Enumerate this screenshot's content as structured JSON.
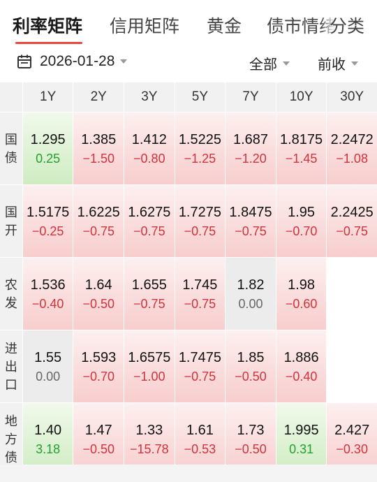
{
  "tabs": [
    {
      "label": "利率矩阵",
      "active": true
    },
    {
      "label": "信用矩阵",
      "active": false
    },
    {
      "label": "黄金",
      "active": false
    },
    {
      "label": "债市情绪",
      "active": false
    }
  ],
  "tab_more_label": "分类",
  "filters": {
    "date": "2026-01-28",
    "scope": "全部",
    "compare": "前收"
  },
  "columns": [
    "1Y",
    "2Y",
    "3Y",
    "5Y",
    "7Y",
    "10Y",
    "30Y"
  ],
  "rows": [
    {
      "label": [
        "国",
        "债"
      ],
      "cells": [
        {
          "value": "1.295",
          "change": "0.25",
          "tone": "green"
        },
        {
          "value": "1.385",
          "change": "−1.50",
          "tone": "red"
        },
        {
          "value": "1.412",
          "change": "−0.80",
          "tone": "red"
        },
        {
          "value": "1.5225",
          "change": "−1.25",
          "tone": "red"
        },
        {
          "value": "1.687",
          "change": "−1.20",
          "tone": "red"
        },
        {
          "value": "1.8175",
          "change": "−1.45",
          "tone": "red"
        },
        {
          "value": "2.2472",
          "change": "−1.08",
          "tone": "red"
        }
      ]
    },
    {
      "label": [
        "国",
        "开"
      ],
      "cells": [
        {
          "value": "1.5175",
          "change": "−0.25",
          "tone": "red"
        },
        {
          "value": "1.6225",
          "change": "−0.75",
          "tone": "red"
        },
        {
          "value": "1.6275",
          "change": "−0.75",
          "tone": "red"
        },
        {
          "value": "1.7275",
          "change": "−0.75",
          "tone": "red"
        },
        {
          "value": "1.8475",
          "change": "−0.75",
          "tone": "red"
        },
        {
          "value": "1.95",
          "change": "−0.70",
          "tone": "red"
        },
        {
          "value": "2.2425",
          "change": "−0.75",
          "tone": "red"
        }
      ]
    },
    {
      "label": [
        "农",
        "发"
      ],
      "cells": [
        {
          "value": "1.536",
          "change": "−0.40",
          "tone": "red"
        },
        {
          "value": "1.64",
          "change": "−0.50",
          "tone": "red"
        },
        {
          "value": "1.655",
          "change": "−0.75",
          "tone": "red"
        },
        {
          "value": "1.745",
          "change": "−0.75",
          "tone": "red"
        },
        {
          "value": "1.82",
          "change": "0.00",
          "tone": "gray"
        },
        {
          "value": "1.98",
          "change": "−0.60",
          "tone": "red"
        },
        {
          "value": "",
          "change": "",
          "tone": "empty"
        }
      ]
    },
    {
      "label": [
        "进",
        "出",
        "口"
      ],
      "cells": [
        {
          "value": "1.55",
          "change": "0.00",
          "tone": "gray"
        },
        {
          "value": "1.593",
          "change": "−0.70",
          "tone": "red"
        },
        {
          "value": "1.6575",
          "change": "−1.00",
          "tone": "red"
        },
        {
          "value": "1.7475",
          "change": "−0.75",
          "tone": "red"
        },
        {
          "value": "1.85",
          "change": "−0.50",
          "tone": "red"
        },
        {
          "value": "1.886",
          "change": "−0.40",
          "tone": "red"
        },
        {
          "value": "",
          "change": "",
          "tone": "empty"
        }
      ]
    },
    {
      "label": [
        "地",
        "方",
        "债"
      ],
      "cells": [
        {
          "value": "1.40",
          "change": "3.18",
          "tone": "green"
        },
        {
          "value": "1.47",
          "change": "−0.50",
          "tone": "red"
        },
        {
          "value": "1.33",
          "change": "−15.78",
          "tone": "red"
        },
        {
          "value": "1.61",
          "change": "−0.53",
          "tone": "red"
        },
        {
          "value": "1.73",
          "change": "−0.50",
          "tone": "red"
        },
        {
          "value": "1.995",
          "change": "0.31",
          "tone": "green"
        },
        {
          "value": "2.427",
          "change": "−0.30",
          "tone": "red"
        }
      ]
    }
  ],
  "colors": {
    "accent": "#e8463a",
    "down_red": "#d2323a",
    "up_green": "#22a02d"
  },
  "icons": {
    "date": "calendar-icon",
    "dropdown": "caret-down-icon"
  }
}
